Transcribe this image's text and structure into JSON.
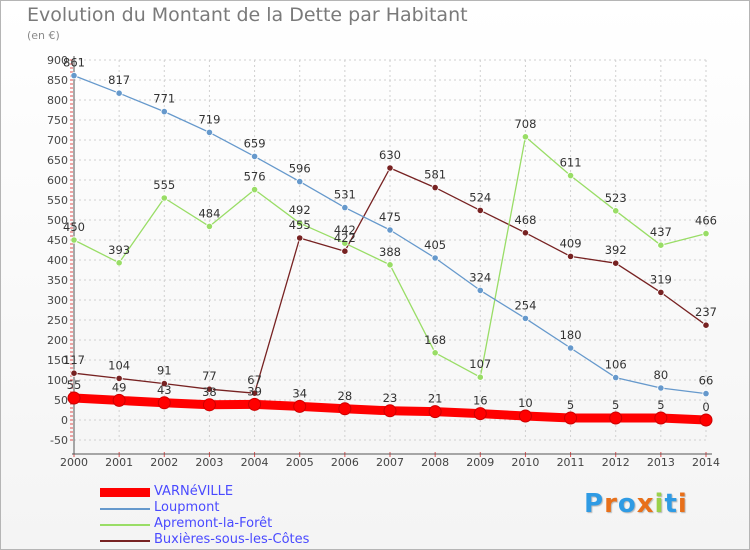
{
  "title": "Evolution du Montant de la Dette par Habitant",
  "unit": "(en €)",
  "logo": {
    "letters": [
      "P",
      "r",
      "o",
      "x",
      "i",
      "t",
      "i"
    ],
    "colors": [
      "#2f9be4",
      "#e8701a",
      "#2f9be4",
      "#e8701a",
      "#9bd14b",
      "#2f9be4",
      "#e8701a"
    ]
  },
  "chart_data": {
    "type": "line",
    "x": [
      2000,
      2001,
      2002,
      2003,
      2004,
      2005,
      2006,
      2007,
      2008,
      2009,
      2010,
      2011,
      2012,
      2013,
      2014
    ],
    "ylim": [
      -50,
      900
    ],
    "yticks": [
      -50,
      0,
      50,
      100,
      150,
      200,
      250,
      300,
      350,
      400,
      450,
      500,
      550,
      600,
      650,
      700,
      750,
      800,
      850,
      900
    ],
    "grid": true,
    "legend": "bottom",
    "series": [
      {
        "name": "VARNéVILLE",
        "color": "#ff0000",
        "values": [
          55,
          49,
          43,
          38,
          39,
          34,
          28,
          23,
          21,
          16,
          10,
          5,
          5,
          5,
          0
        ]
      },
      {
        "name": "Loupmont",
        "color": "#6699cc",
        "values": [
          861,
          817,
          771,
          719,
          659,
          596,
          531,
          475,
          405,
          324,
          254,
          180,
          106,
          80,
          66
        ]
      },
      {
        "name": "Apremont-la-Forêt",
        "color": "#99dd66",
        "values": [
          450,
          393,
          555,
          484,
          576,
          492,
          442,
          388,
          168,
          107,
          708,
          611,
          523,
          437,
          466
        ]
      },
      {
        "name": "Buxières-sous-les-Côtes",
        "color": "#772222",
        "values": [
          117,
          104,
          91,
          77,
          67,
          455,
          422,
          630,
          581,
          524,
          468,
          409,
          392,
          319,
          237
        ]
      }
    ]
  }
}
